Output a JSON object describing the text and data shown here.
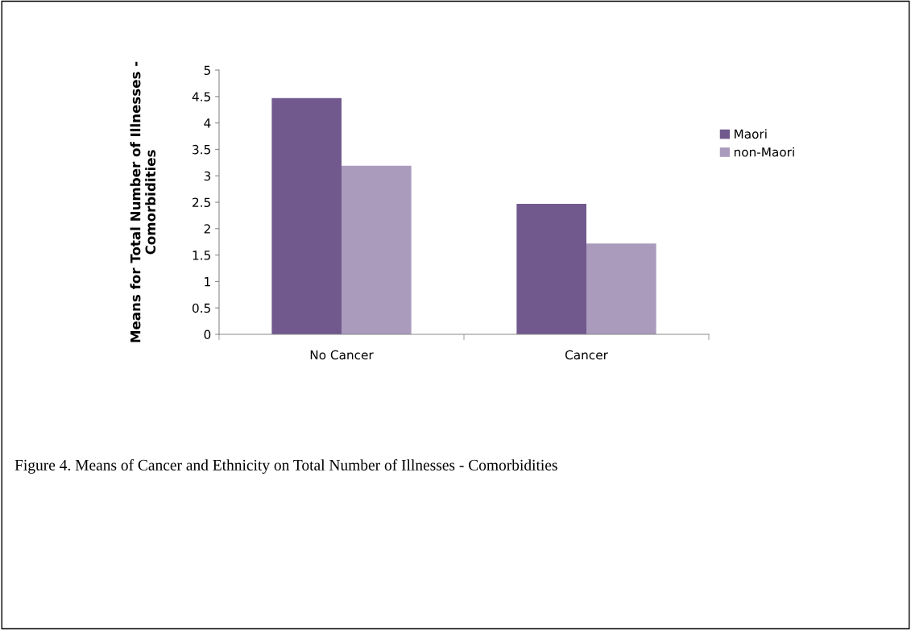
{
  "chart_data": {
    "type": "bar",
    "ylabel": "Means for Total Number of Illnesses -\nComorbidities",
    "categories": [
      "No Cancer",
      "Cancer"
    ],
    "series": [
      {
        "name": "Maori",
        "color": "#71598e",
        "values": [
          4.47,
          2.47
        ]
      },
      {
        "name": "non-Maori",
        "color": "#aa9bbd",
        "values": [
          3.19,
          1.72
        ]
      }
    ],
    "ylim": [
      0,
      5
    ],
    "yticks": [
      0,
      0.5,
      1,
      1.5,
      2,
      2.5,
      3,
      3.5,
      4,
      4.5,
      5
    ],
    "grid": false,
    "legend": "right",
    "annotations": [
      "Figure 4. Means of Cancer and Ethnicity on Total Number of Illnesses - Comorbidities"
    ]
  }
}
